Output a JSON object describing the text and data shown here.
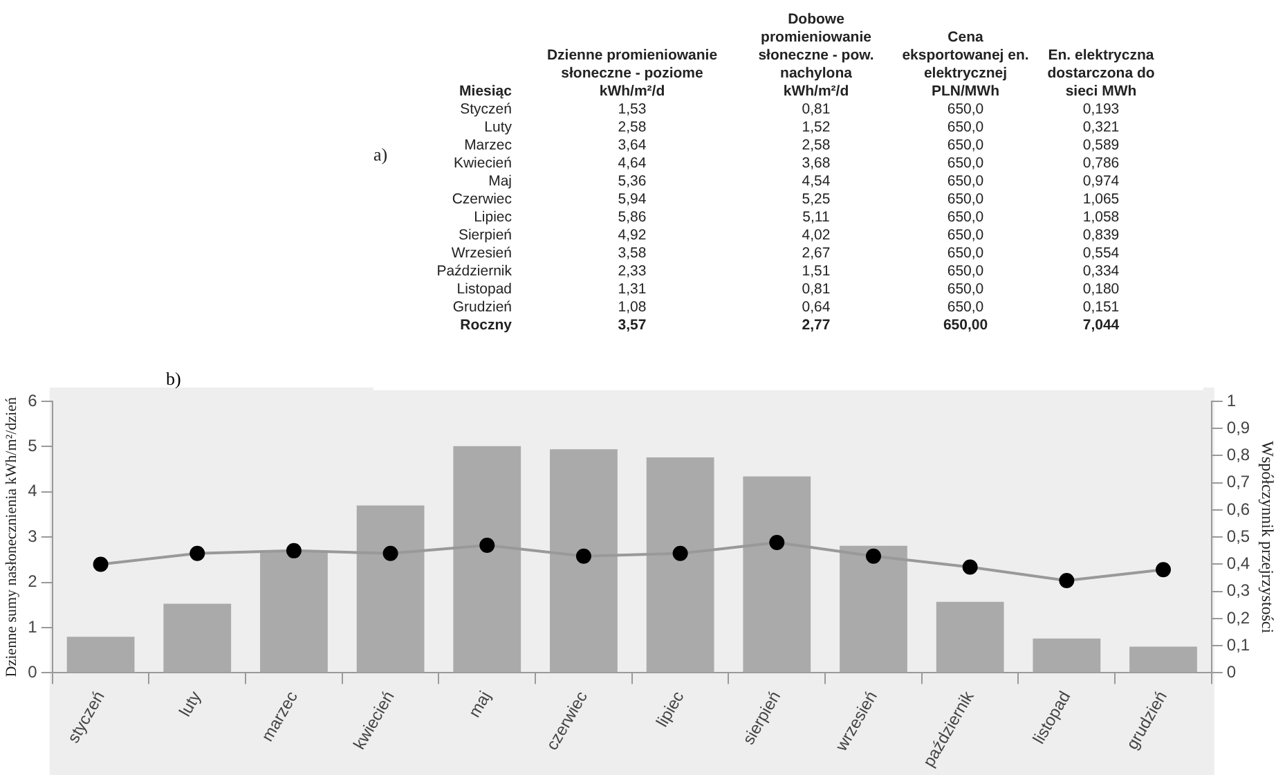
{
  "chart_data": [
    {
      "type": "other",
      "xlabel": "Miesiąc",
      "annotations": [
        "a)"
      ],
      "data_labels": true,
      "categories": [
        "Styczeń",
        "Luty",
        "Marzec",
        "Kwiecień",
        "Maj",
        "Czerwiec",
        "Lipiec",
        "Sierpień",
        "Wrzesień",
        "Październik",
        "Listopad",
        "Grudzień",
        "Roczny"
      ],
      "series": [
        {
          "name": "Dzienne promieniowanie słoneczne - poziome kWh/m²/d",
          "values": [
            1.53,
            2.58,
            3.64,
            4.64,
            5.36,
            5.94,
            5.86,
            4.92,
            3.58,
            2.33,
            1.31,
            1.08,
            3.57
          ],
          "value_labels": [
            "1,53",
            "2,58",
            "3,64",
            "4,64",
            "5,36",
            "5,94",
            "5,86",
            "4,92",
            "3,58",
            "2,33",
            "1,31",
            "1,08",
            "3,57"
          ]
        },
        {
          "name": "Dobowe promieniowanie słoneczne - pow. nachylona kWh/m²/d",
          "values": [
            0.81,
            1.52,
            2.58,
            3.68,
            4.54,
            5.25,
            5.11,
            4.02,
            2.67,
            1.51,
            0.81,
            0.64,
            2.77
          ],
          "value_labels": [
            "0,81",
            "1,52",
            "2,58",
            "3,68",
            "4,54",
            "5,25",
            "5,11",
            "4,02",
            "2,67",
            "1,51",
            "0,81",
            "0,64",
            "2,77"
          ]
        },
        {
          "name": "Cena eksportowanej en. elektrycznej PLN/MWh",
          "values": [
            650.0,
            650.0,
            650.0,
            650.0,
            650.0,
            650.0,
            650.0,
            650.0,
            650.0,
            650.0,
            650.0,
            650.0,
            650.0
          ],
          "value_labels": [
            "650,0",
            "650,0",
            "650,0",
            "650,0",
            "650,0",
            "650,0",
            "650,0",
            "650,0",
            "650,0",
            "650,0",
            "650,0",
            "650,0",
            "650,00"
          ]
        },
        {
          "name": "En. elektryczna dostarczona do sieci MWh",
          "values": [
            0.193,
            0.321,
            0.589,
            0.786,
            0.974,
            1.065,
            1.058,
            0.839,
            0.554,
            0.334,
            0.18,
            0.151,
            7.044
          ],
          "value_labels": [
            "0,193",
            "0,321",
            "0,589",
            "0,786",
            "0,974",
            "1,065",
            "1,058",
            "0,839",
            "0,554",
            "0,334",
            "0,180",
            "0,151",
            "7,044"
          ]
        }
      ]
    },
    {
      "type": "bar",
      "annotations": [
        "b)"
      ],
      "ylabel": "Dzienne sumy nasłonecznienia kWh/m²/dzień",
      "y2label": "Współczynnik przejrzystości",
      "categories": [
        "styczeń",
        "luty",
        "marzec",
        "kwiecień",
        "maj",
        "czerwiec",
        "lipiec",
        "sierpień",
        "wrzesień",
        "październik",
        "listopad",
        "grudzień"
      ],
      "series": [
        {
          "type": "bar",
          "color": "#aaaaaa",
          "values": [
            0.8,
            1.53,
            2.68,
            3.7,
            5.01,
            4.94,
            4.76,
            4.34,
            2.81,
            1.57,
            0.76,
            0.58
          ]
        },
        {
          "type": "line",
          "axis": "y2",
          "color": "#999999",
          "values": [
            0.4,
            0.44,
            0.45,
            0.44,
            0.47,
            0.43,
            0.44,
            0.48,
            0.43,
            0.39,
            0.34,
            0.38
          ]
        }
      ],
      "ylim": [
        0,
        6
      ],
      "yticks": [
        0,
        1,
        2,
        3,
        4,
        5,
        6
      ],
      "y2lim": [
        0,
        1
      ],
      "y2ticks": [
        0,
        {
          "value": 0.1,
          "label": "0,1"
        },
        {
          "value": 0.2,
          "label": "0,2"
        },
        {
          "value": 0.3,
          "label": "0,3"
        },
        {
          "value": 0.4,
          "label": "0,4"
        },
        {
          "value": 0.5,
          "label": "0,5"
        },
        {
          "value": 0.6,
          "label": "0,6"
        },
        {
          "value": 0.7,
          "label": "0,7"
        },
        {
          "value": 0.8,
          "label": "0,8"
        },
        {
          "value": 0.9,
          "label": "0,9"
        },
        1
      ],
      "grid": false,
      "legend": false,
      "marker": "circle",
      "line_style": "solid"
    }
  ]
}
